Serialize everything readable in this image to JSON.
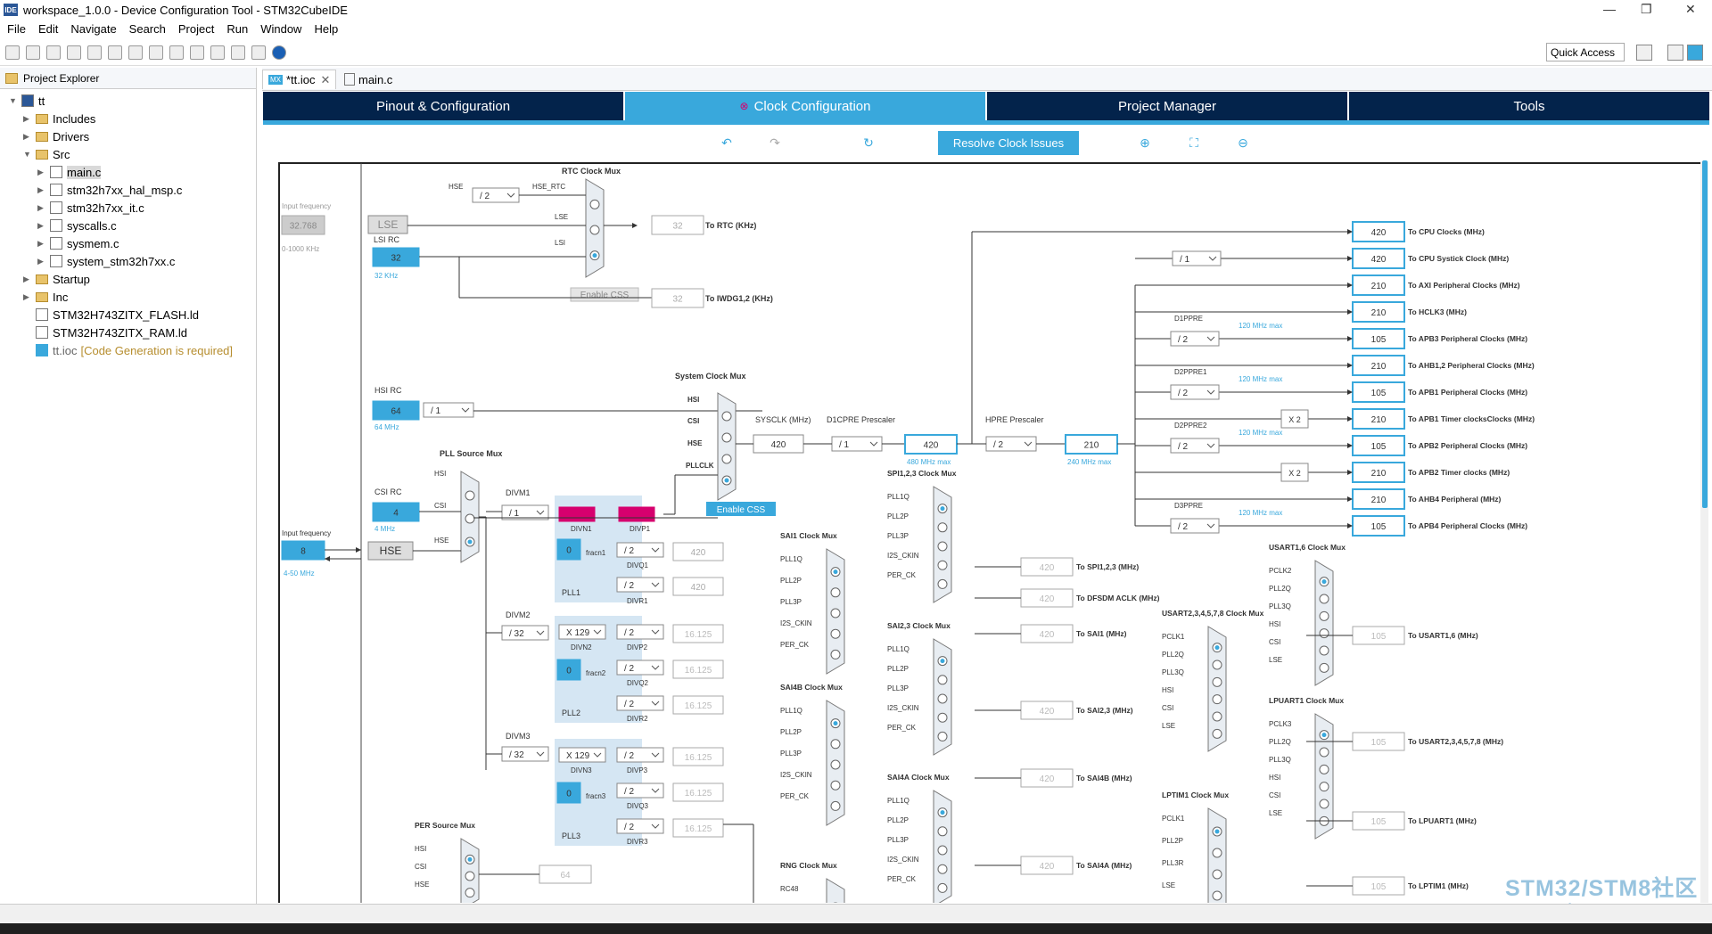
{
  "window": {
    "title": "workspace_1.0.0 - Device Configuration Tool - STM32CubeIDE",
    "badge": "IDE",
    "minimize": "—",
    "maximize": "❐",
    "close": "✕"
  },
  "menu": [
    "File",
    "Edit",
    "Navigate",
    "Search",
    "Project",
    "Run",
    "Window",
    "Help"
  ],
  "toolbar": {
    "quick_access": "Quick Access"
  },
  "explorer": {
    "title": "Project Explorer",
    "items": [
      {
        "label": "tt",
        "indent": 0,
        "kind": "project"
      },
      {
        "label": "Includes",
        "indent": 1,
        "kind": "folder"
      },
      {
        "label": "Drivers",
        "indent": 1,
        "kind": "folder"
      },
      {
        "label": "Src",
        "indent": 1,
        "kind": "folder"
      },
      {
        "label": "main.c",
        "indent": 2,
        "kind": "file"
      },
      {
        "label": "stm32h7xx_hal_msp.c",
        "indent": 2,
        "kind": "file"
      },
      {
        "label": "stm32h7xx_it.c",
        "indent": 2,
        "kind": "file"
      },
      {
        "label": "syscalls.c",
        "indent": 2,
        "kind": "file"
      },
      {
        "label": "sysmem.c",
        "indent": 2,
        "kind": "file"
      },
      {
        "label": "system_stm32h7xx.c",
        "indent": 2,
        "kind": "file"
      },
      {
        "label": "Startup",
        "indent": 1,
        "kind": "folder"
      },
      {
        "label": "Inc",
        "indent": 1,
        "kind": "folder"
      },
      {
        "label": "STM32H743ZITX_FLASH.ld",
        "indent": 1,
        "kind": "ld"
      },
      {
        "label": "STM32H743ZITX_RAM.ld",
        "indent": 1,
        "kind": "ld"
      },
      {
        "label": "tt.ioc",
        "indent": 1,
        "kind": "ioc",
        "decoration": "[Code Generation is required]"
      }
    ]
  },
  "editor_tabs": [
    {
      "label": "*tt.ioc",
      "active": true,
      "badge": "MX"
    },
    {
      "label": "main.c",
      "active": false
    }
  ],
  "main_tabs": [
    {
      "label": "Pinout & Configuration",
      "active": false
    },
    {
      "label": "Clock Configuration",
      "active": true
    },
    {
      "label": "Project Manager",
      "active": false
    },
    {
      "label": "Tools",
      "active": false
    }
  ],
  "clock_toolbar": {
    "resolve": "Resolve Clock Issues"
  },
  "diagram": {
    "labels": {
      "input_freq": "Input frequency",
      "lse_freq": "32.768",
      "lse_range": "0-1000 KHz",
      "lsi_rc": "LSI RC",
      "lsi_val": "32",
      "lsi_unit": "32 KHz",
      "lse": "LSE",
      "rtc_mux": "RTC Clock Mux",
      "hse_rtc_div": "/ 2",
      "hse": "HSE",
      "hse_rtc": "HSE_RTC",
      "lse_in": "LSE",
      "lsi_in": "LSI",
      "enable_css": "Enable CSS",
      "rtc_out": "32",
      "rtc_label": "To RTC (KHz)",
      "iwdg_out": "32",
      "iwdg_label": "To IWDG1,2 (KHz)",
      "hsi_rc": "HSI RC",
      "hsi_val": "64",
      "hsi_unit": "64 MHz",
      "hsi_div": "/ 1",
      "csi_rc": "CSI RC",
      "csi_val": "4",
      "csi_unit": "4 MHz",
      "hse_val": "8",
      "hse_range": "4-50 MHz",
      "pll_src_mux": "PLL Source Mux",
      "hsi": "HSI",
      "csi": "CSI",
      "sys_mux": "System Clock Mux",
      "pllclk": "PLLCLK",
      "enable_css2": "Enable CSS",
      "sysclk": "SYSCLK (MHz)",
      "sysclk_val": "420",
      "d1cpre": "D1CPRE Prescaler",
      "d1cpre_div": "/ 1",
      "cpu_val": "420",
      "cpu_max": "480 MHz max",
      "hpre": "HPRE Prescaler",
      "hpre_div": "/ 2",
      "ahb_val": "210",
      "ahb_max": "240 MHz max",
      "divm1": "DIVM1",
      "divm1_v": "/ 1",
      "divn1": "DIVN1",
      "divp1": "DIVP1",
      "divq1": "DIVQ1",
      "divr1": "DIVR1",
      "fracn1": "fracn1",
      "frac_v": "0",
      "pll1": "PLL1",
      "divq1_v": "/ 2",
      "divr1_v": "/ 2",
      "q1_out": "420",
      "r1_out": "420",
      "divm2": "DIVM2",
      "divm2_v": "/ 32",
      "divn2_v": "X 129",
      "divn2": "DIVN2",
      "divp2": "DIVP2",
      "divq2": "DIVQ2",
      "divr2": "DIVR2",
      "fracn2": "fracn2",
      "pll2": "PLL2",
      "div2_v": "/ 2",
      "pll2_out": "16.125",
      "divm3": "DIVM3",
      "divm3_v": "/ 32",
      "divn3_v": "X 129",
      "divn3": "DIVN3",
      "divp3": "DIVP3",
      "divq3": "DIVQ3",
      "divr3": "DIVR3",
      "fracn3": "fracn3",
      "pll3": "PLL3",
      "pll3_out": "16.125",
      "per_mux": "PER Source Mux",
      "per_out": "64",
      "d1ppre": "D1PPRE",
      "d2ppre1": "D2PPRE1",
      "d2ppre2": "D2PPRE2",
      "d3ppre": "D3PPRE",
      "max120": "120 MHz max",
      "x2": "X 2",
      "div1": "/ 1",
      "spi_mux": "SPI1,2,3 Clock Mux",
      "sai1_mux": "SAI1 Clock Mux",
      "sai23_mux": "SAI2,3 Clock Mux",
      "sai4b_mux": "SAI4B Clock Mux",
      "sai4a_mux": "SAI4A Clock Mux",
      "rng_mux": "RNG Clock Mux",
      "usart16_mux": "USART1,6 Clock Mux",
      "usart2_mux": "USART2,3,4,5,7,8 Clock Mux",
      "lpuart_mux": "LPUART1 Clock Mux",
      "lptim_mux": "LPTIM1 Clock Mux",
      "pll1q": "PLL1Q",
      "pll2p": "PLL2P",
      "pll3p": "PLL3P",
      "i2s_ckin": "I2S_CKIN",
      "per_ck": "PER_CK",
      "rc48": "RC48",
      "pclk2": "PCLK2",
      "pll2q": "PLL2Q",
      "pll3q": "PLL3Q",
      "lse2": "LSE",
      "pclk1": "PCLK1",
      "pclk3": "PCLK3",
      "pll3r": "PLL3R"
    },
    "outputs": [
      {
        "val": "420",
        "label": "To CPU Clocks (MHz)"
      },
      {
        "val": "420",
        "label": "To CPU Systick Clock (MHz)"
      },
      {
        "val": "210",
        "label": "To AXI Peripheral Clocks (MHz)"
      },
      {
        "val": "210",
        "label": "To HCLK3 (MHz)"
      },
      {
        "val": "105",
        "label": "To APB3 Peripheral Clocks (MHz)"
      },
      {
        "val": "210",
        "label": "To AHB1,2 Peripheral Clocks (MHz)"
      },
      {
        "val": "105",
        "label": "To APB1 Peripheral Clocks (MHz)"
      },
      {
        "val": "210",
        "label": "To APB1 Timer clocksClocks (MHz)"
      },
      {
        "val": "105",
        "label": "To APB2 Peripheral Clocks (MHz)"
      },
      {
        "val": "210",
        "label": "To APB2 Timer clocks (MHz)"
      },
      {
        "val": "210",
        "label": "To AHB4 Peripheral (MHz)"
      },
      {
        "val": "105",
        "label": "To APB4 Peripheral Clocks (MHz)"
      }
    ],
    "periph_outputs": [
      {
        "val": "420",
        "label": "To SPI1,2,3 (MHz)"
      },
      {
        "val": "420",
        "label": "To DFSDM ACLK (MHz)"
      },
      {
        "val": "420",
        "label": "To SAI1 (MHz)"
      },
      {
        "val": "420",
        "label": "To SAI2,3 (MHz)"
      },
      {
        "val": "420",
        "label": "To SAI4B (MHz)"
      },
      {
        "val": "420",
        "label": "To SAI4A (MHz)"
      },
      {
        "val": "105",
        "label": "To USART1,6 (MHz)"
      },
      {
        "val": "105",
        "label": "To USART2,3,4,5,7,8 (MHz)"
      },
      {
        "val": "105",
        "label": "To LPUART1 (MHz)"
      },
      {
        "val": "105",
        "label": "To LPTIM1 (MHz)"
      }
    ]
  },
  "watermark": {
    "line1": "STM32/STM8社区",
    "line2": "www.stmcu.org.cn"
  },
  "colors": {
    "accent": "#39a8dc",
    "dark_tab": "#03234b",
    "error": "#d6006e",
    "pll_bg": "#d5e6f3"
  }
}
